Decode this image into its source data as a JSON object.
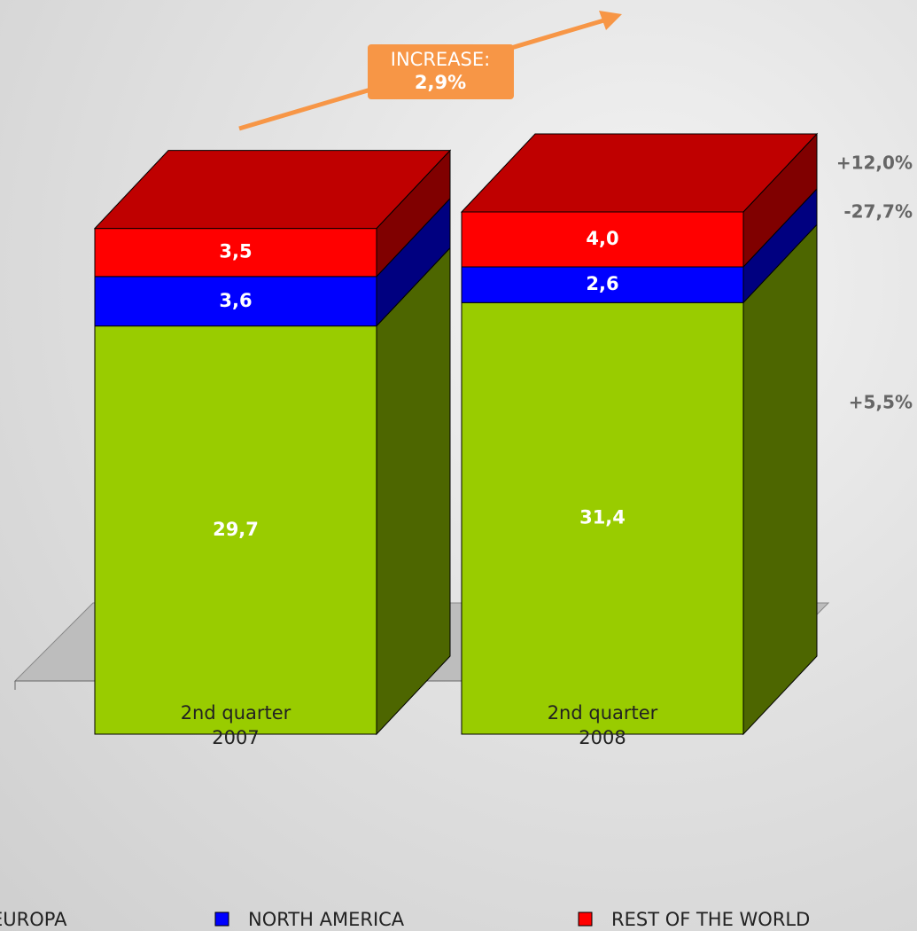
{
  "chart_data": {
    "type": "bar",
    "stacked": true,
    "categories": [
      "2nd quarter 2007",
      "2nd quarter 2008"
    ],
    "series": [
      {
        "name": "EUROPA",
        "color": "#99cc00",
        "values": [
          29.7,
          31.4
        ],
        "value_labels": [
          "29,7",
          "31,4"
        ]
      },
      {
        "name": "NORTH AMERICA",
        "color": "#0000ff",
        "values": [
          3.6,
          2.6
        ],
        "value_labels": [
          "3,6",
          "2,6"
        ]
      },
      {
        "name": "REST OF THE WORLD",
        "color": "#ff0000",
        "values": [
          3.5,
          4.0
        ],
        "value_labels": [
          "3,5",
          "4,0"
        ]
      }
    ],
    "annotations": {
      "increase_label": "INCREASE:",
      "increase_value": "2,9%",
      "changes": [
        "+12,0%",
        "-27,7%",
        "+5,5%"
      ]
    }
  }
}
